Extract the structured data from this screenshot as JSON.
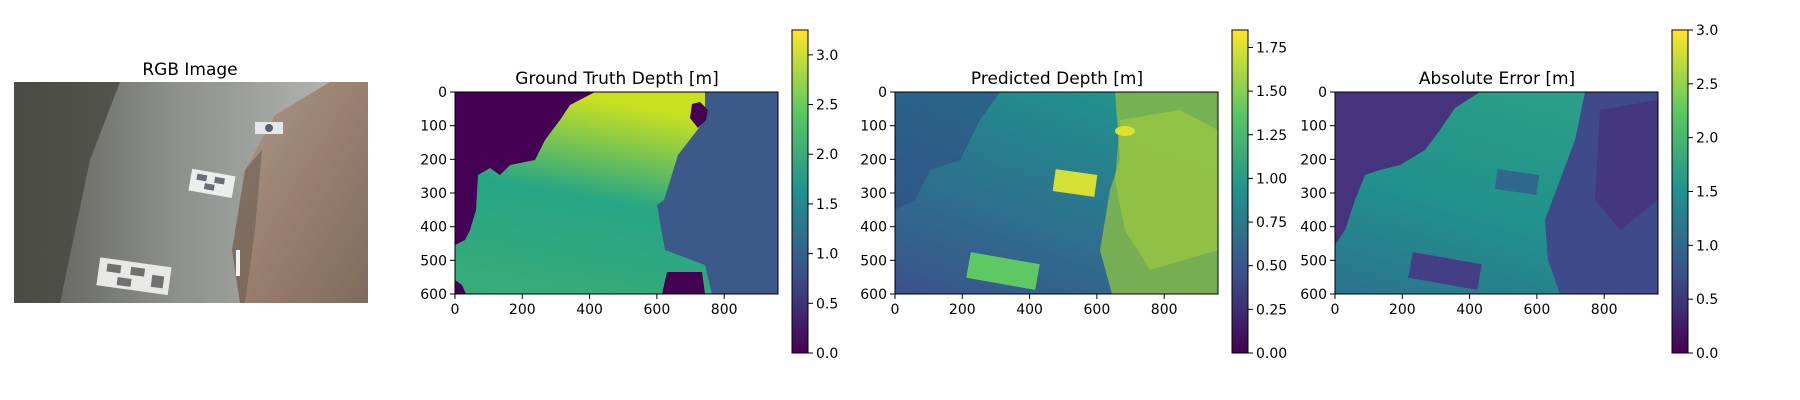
{
  "chart_data": [
    {
      "type": "image",
      "title": "RGB Image"
    },
    {
      "type": "heatmap",
      "title": "Ground Truth Depth [m]",
      "xticks": [
        "0",
        "200",
        "400",
        "600",
        "800"
      ],
      "yticks": [
        "0",
        "100",
        "200",
        "300",
        "400",
        "500",
        "600"
      ],
      "xlim": [
        0,
        960
      ],
      "ylim": [
        0,
        600
      ],
      "colorbar": {
        "ticks": [
          "0.0",
          "0.5",
          "1.0",
          "1.5",
          "2.0",
          "2.5",
          "3.0"
        ],
        "min": 0,
        "max": 3.25
      }
    },
    {
      "type": "heatmap",
      "title": "Predicted Depth [m]",
      "xticks": [
        "0",
        "200",
        "400",
        "600",
        "800"
      ],
      "yticks": [
        "0",
        "100",
        "200",
        "300",
        "400",
        "500",
        "600"
      ],
      "xlim": [
        0,
        960
      ],
      "ylim": [
        0,
        600
      ],
      "colorbar": {
        "ticks": [
          "0.00",
          "0.25",
          "0.50",
          "0.75",
          "1.00",
          "1.25",
          "1.50",
          "1.75"
        ],
        "min": 0,
        "max": 1.85
      }
    },
    {
      "type": "heatmap",
      "title": "Absolute Error [m]",
      "xticks": [
        "0",
        "200",
        "400",
        "600",
        "800"
      ],
      "yticks": [
        "0",
        "100",
        "200",
        "300",
        "400",
        "500",
        "600"
      ],
      "xlim": [
        0,
        960
      ],
      "ylim": [
        0,
        600
      ],
      "colorbar": {
        "ticks": [
          "0.0",
          "0.5",
          "1.0",
          "1.5",
          "2.0",
          "2.5",
          "3.0"
        ],
        "min": 0,
        "max": 3.0
      }
    }
  ],
  "colors": {
    "viridis_0": "#440154",
    "viridis_25": "#3b528b",
    "viridis_50": "#21918c",
    "viridis_75": "#5ec962",
    "viridis_100": "#fde725"
  }
}
